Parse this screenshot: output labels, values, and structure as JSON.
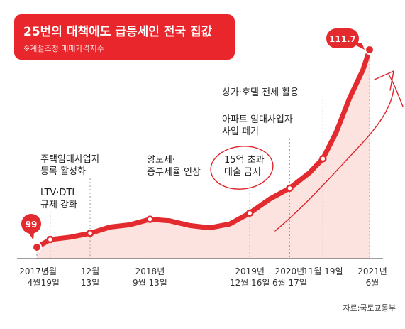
{
  "colors": {
    "accent": "#e32a2f",
    "fill": "#fde3df"
  },
  "chart_data": {
    "type": "area",
    "title": "25번의 대책에도 급등세인 전국 집값",
    "subtitle": "※계절조정 매매가격지수",
    "source": "자료:국토교통부",
    "start_value": "99",
    "end_value": "111.7",
    "ylim": [
      98,
      113
    ],
    "x_range": [
      "2017-04",
      "2021-07"
    ],
    "series": [
      {
        "values": [
          [
            "2017-04",
            99.0
          ],
          [
            "2017-06",
            99.5
          ],
          [
            "2017-09",
            99.65
          ],
          [
            "2017-12",
            99.9
          ],
          [
            "2018-03",
            100.3
          ],
          [
            "2018-06",
            100.45
          ],
          [
            "2018-09",
            100.8
          ],
          [
            "2018-12",
            100.7
          ],
          [
            "2019-03",
            100.4
          ],
          [
            "2019-06",
            100.25
          ],
          [
            "2019-09",
            100.5
          ],
          [
            "2019-12",
            101.2
          ],
          [
            "2020-03",
            102.1
          ],
          [
            "2020-06",
            102.8
          ],
          [
            "2020-09",
            103.8
          ],
          [
            "2020-11",
            104.7
          ],
          [
            "2021-01",
            106.4
          ],
          [
            "2021-03",
            108.6
          ],
          [
            "2021-05",
            110.4
          ],
          [
            "2021-06",
            111.7
          ]
        ]
      }
    ],
    "x_ticks": [
      {
        "date": "2017-04",
        "label1": "2017년",
        "label2": "4월"
      },
      {
        "date": "2017-06",
        "label1": "6월",
        "label2": "19일"
      },
      {
        "date": "2017-12",
        "label1": "12월",
        "label2": "13일"
      },
      {
        "date": "2018-09",
        "label1": "2018년",
        "label2": "9월 13일"
      },
      {
        "date": "2019-12",
        "label1": "2019년",
        "label2": "12월 16일"
      },
      {
        "date": "2020-06",
        "label1": "2020년",
        "label2": "6월 17일"
      },
      {
        "date": "2020-11",
        "label1": "11월 19일",
        "label2": ""
      },
      {
        "date": "2021-06",
        "label1": "2021년",
        "label2": "6월"
      }
    ],
    "annotations": [
      {
        "date": "2017-06",
        "lines": [
          "LTV·DTI",
          "규제 강화"
        ]
      },
      {
        "date": "2017-12",
        "lines": [
          "주택임대사업자",
          "등록 활성화"
        ]
      },
      {
        "date": "2018-09",
        "lines": [
          "양도세·",
          "종부세율 인상"
        ]
      },
      {
        "date": "2019-12",
        "lines": [
          "15억 초과",
          "대출 금지"
        ]
      },
      {
        "date": "2020-06",
        "lines": [
          "아파트 임대사업자",
          "사업 폐기"
        ]
      },
      {
        "date": "2020-11",
        "lines": [
          "상가·호텔 전세 활용"
        ]
      }
    ]
  }
}
